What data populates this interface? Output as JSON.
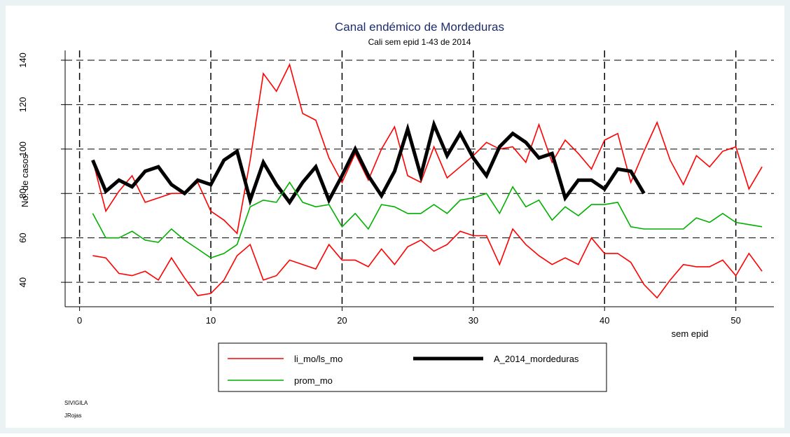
{
  "chart_data": {
    "type": "line",
    "title": "Canal endémico de Mordeduras",
    "subtitle": "Cali sem epid 1-43 de 2014",
    "y_label": "No. de casos",
    "x_label": "sem epid",
    "notes": [
      "SIVIGILA",
      "JRojas"
    ],
    "x": [
      1,
      2,
      3,
      4,
      5,
      6,
      7,
      8,
      9,
      10,
      11,
      12,
      13,
      14,
      15,
      16,
      17,
      18,
      19,
      20,
      21,
      22,
      23,
      24,
      25,
      26,
      27,
      28,
      29,
      30,
      31,
      32,
      33,
      34,
      35,
      36,
      37,
      38,
      39,
      40,
      41,
      42,
      43,
      44,
      45,
      46,
      47,
      48,
      49,
      50,
      51,
      52
    ],
    "series": [
      {
        "name": "li_mo/ls_mo",
        "color": "#ff0000",
        "lower": [
          52,
          51,
          44,
          43,
          45,
          41,
          51,
          42,
          34,
          35,
          41,
          52,
          57,
          41,
          43,
          50,
          48,
          46,
          57,
          50,
          50,
          47,
          55,
          48,
          56,
          59,
          54,
          57,
          63,
          61,
          61,
          48,
          64,
          57,
          52,
          48,
          51,
          48,
          60,
          53,
          53,
          49,
          39,
          33,
          41,
          48,
          47,
          47,
          50,
          43,
          53,
          45
        ],
        "upper": [
          95,
          72,
          81,
          88,
          76,
          78,
          80,
          80,
          85,
          72,
          68,
          62,
          95,
          134,
          126,
          138,
          116,
          113,
          96,
          85,
          98,
          86,
          100,
          110,
          88,
          85,
          101,
          87,
          92,
          97,
          103,
          100,
          101,
          94,
          111,
          94,
          104,
          98,
          91,
          104,
          107,
          85,
          99,
          112,
          95,
          84,
          97,
          92,
          99,
          101,
          82,
          92
        ]
      },
      {
        "name": "A_2014_mordeduras",
        "color": "#000000",
        "values": [
          95,
          81,
          86,
          83,
          90,
          92,
          84,
          80,
          86,
          84,
          95,
          99,
          77,
          94,
          84,
          76,
          85,
          92,
          77,
          88,
          100,
          88,
          79,
          90,
          109,
          88,
          111,
          97,
          107,
          96,
          88,
          101,
          107,
          103,
          96,
          98,
          78,
          86,
          86,
          82,
          91,
          90,
          80,
          null,
          null,
          null,
          null,
          null,
          null,
          null,
          null,
          null
        ]
      },
      {
        "name": "prom_mo",
        "color": "#00b000",
        "values": [
          71,
          60,
          60,
          63,
          59,
          58,
          64,
          59,
          55,
          51,
          53,
          57,
          74,
          77,
          76,
          85,
          76,
          74,
          75,
          65,
          71,
          64,
          75,
          74,
          71,
          71,
          75,
          71,
          77,
          78,
          80,
          71,
          83,
          74,
          77,
          68,
          74,
          70,
          75,
          75,
          76,
          65,
          64,
          64,
          64,
          64,
          69,
          67,
          71,
          67,
          66,
          65
        ]
      }
    ],
    "xlim": [
      -1.1,
      52.9
    ],
    "ylim": [
      29,
      144.4
    ],
    "xticks": [
      0,
      10,
      20,
      30,
      40,
      50
    ],
    "yticks": [
      40,
      60,
      80,
      100,
      120,
      140
    ],
    "grid": true
  }
}
